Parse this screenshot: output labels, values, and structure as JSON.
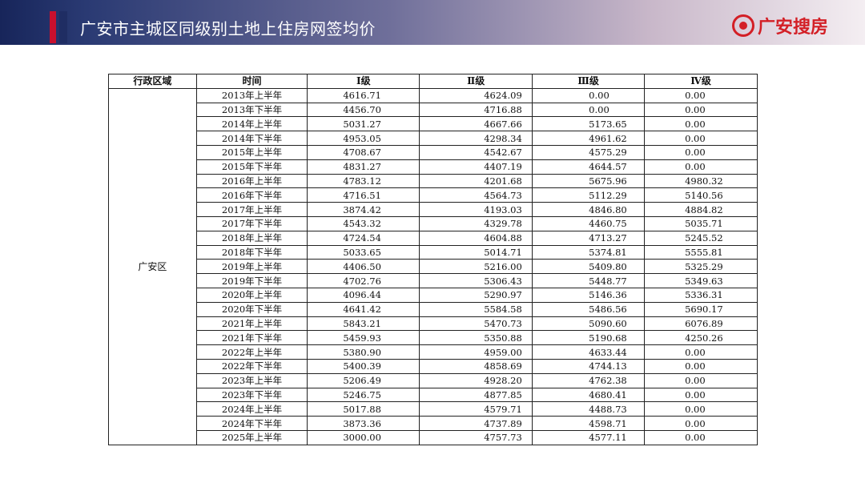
{
  "header": {
    "title": "广安市主城区同级别土地上住房网签均价",
    "logo_text": "广安搜房",
    "colors": {
      "brand_red": "#d31f26",
      "navy": "#17255a"
    }
  },
  "table": {
    "columns": [
      "行政区域",
      "时间",
      "Ⅰ级",
      "Ⅱ级",
      "Ⅲ级",
      "Ⅳ级"
    ],
    "district": "广安区",
    "rows": [
      [
        "2013年上半年",
        "4616.71",
        "4624.09",
        "0.00",
        "0.00"
      ],
      [
        "2013年下半年",
        "4456.70",
        "4716.88",
        "0.00",
        "0.00"
      ],
      [
        "2014年上半年",
        "5031.27",
        "4667.66",
        "5173.65",
        "0.00"
      ],
      [
        "2014年下半年",
        "4953.05",
        "4298.34",
        "4961.62",
        "0.00"
      ],
      [
        "2015年上半年",
        "4708.67",
        "4542.67",
        "4575.29",
        "0.00"
      ],
      [
        "2015年下半年",
        "4831.27",
        "4407.19",
        "4644.57",
        "0.00"
      ],
      [
        "2016年上半年",
        "4783.12",
        "4201.68",
        "5675.96",
        "4980.32"
      ],
      [
        "2016年下半年",
        "4716.51",
        "4564.73",
        "5112.29",
        "5140.56"
      ],
      [
        "2017年上半年",
        "3874.42",
        "4193.03",
        "4846.80",
        "4884.82"
      ],
      [
        "2017年下半年",
        "4543.32",
        "4329.78",
        "4460.75",
        "5035.71"
      ],
      [
        "2018年上半年",
        "4724.54",
        "4604.88",
        "4713.27",
        "5245.52"
      ],
      [
        "2018年下半年",
        "5033.65",
        "5014.71",
        "5374.81",
        "5555.81"
      ],
      [
        "2019年上半年",
        "4406.50",
        "5216.00",
        "5409.80",
        "5325.29"
      ],
      [
        "2019年下半年",
        "4702.76",
        "5306.43",
        "5448.77",
        "5349.63"
      ],
      [
        "2020年上半年",
        "4096.44",
        "5290.97",
        "5146.36",
        "5336.31"
      ],
      [
        "2020年下半年",
        "4641.42",
        "5584.58",
        "5486.56",
        "5690.17"
      ],
      [
        "2021年上半年",
        "5843.21",
        "5470.73",
        "5090.60",
        "6076.89"
      ],
      [
        "2021年下半年",
        "5459.93",
        "5350.88",
        "5190.68",
        "4250.26"
      ],
      [
        "2022年上半年",
        "5380.90",
        "4959.00",
        "4633.44",
        "0.00"
      ],
      [
        "2022年下半年",
        "5400.39",
        "4858.69",
        "4744.13",
        "0.00"
      ],
      [
        "2023年上半年",
        "5206.49",
        "4928.20",
        "4762.38",
        "0.00"
      ],
      [
        "2023年下半年",
        "5246.75",
        "4877.85",
        "4680.41",
        "0.00"
      ],
      [
        "2024年上半年",
        "5017.88",
        "4579.71",
        "4488.73",
        "0.00"
      ],
      [
        "2024年下半年",
        "3873.36",
        "4737.89",
        "4598.71",
        "0.00"
      ],
      [
        "2025年上半年",
        "3000.00",
        "4757.73",
        "4577.11",
        "0.00"
      ]
    ]
  }
}
